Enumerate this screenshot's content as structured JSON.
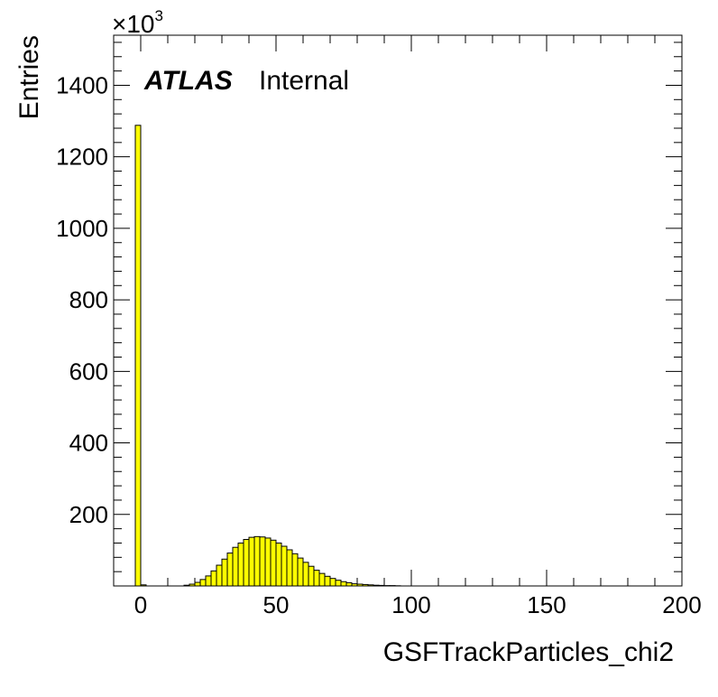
{
  "chart_data": {
    "type": "bar",
    "histogram": true,
    "title": "",
    "xlabel": "GSFTrackParticles_chi2",
    "ylabel": "Entries",
    "y_multiplier_label": "×10",
    "y_multiplier_exponent": "3",
    "xlim": [
      -10,
      200
    ],
    "ylim": [
      0,
      1540
    ],
    "x_ticks": [
      0,
      50,
      100,
      150,
      200
    ],
    "y_ticks": [
      200,
      400,
      600,
      800,
      1000,
      1200,
      1400
    ],
    "bin_width": 2,
    "series": [
      {
        "x": [
          -2,
          0,
          16,
          18,
          20,
          22,
          24,
          26,
          28,
          30,
          32,
          34,
          36,
          38,
          40,
          42,
          44,
          46,
          48,
          50,
          52,
          54,
          56,
          58,
          60,
          62,
          64,
          66,
          68,
          70,
          72,
          74,
          76,
          78,
          80,
          82,
          84,
          86,
          88,
          90,
          92,
          94
        ],
        "values": [
          1288,
          3,
          2,
          5,
          10,
          18,
          28,
          42,
          58,
          75,
          92,
          108,
          120,
          130,
          136,
          138,
          137,
          134,
          128,
          120,
          111,
          101,
          90,
          78,
          66,
          55,
          44,
          35,
          27,
          21,
          16,
          12,
          9,
          6,
          5,
          4,
          3,
          2,
          1.5,
          1,
          1,
          0.5
        ]
      }
    ],
    "fill_color": "#ffff00",
    "line_color": "#000000"
  },
  "annotations": {
    "experiment": "ATLAS",
    "status": "Internal"
  }
}
